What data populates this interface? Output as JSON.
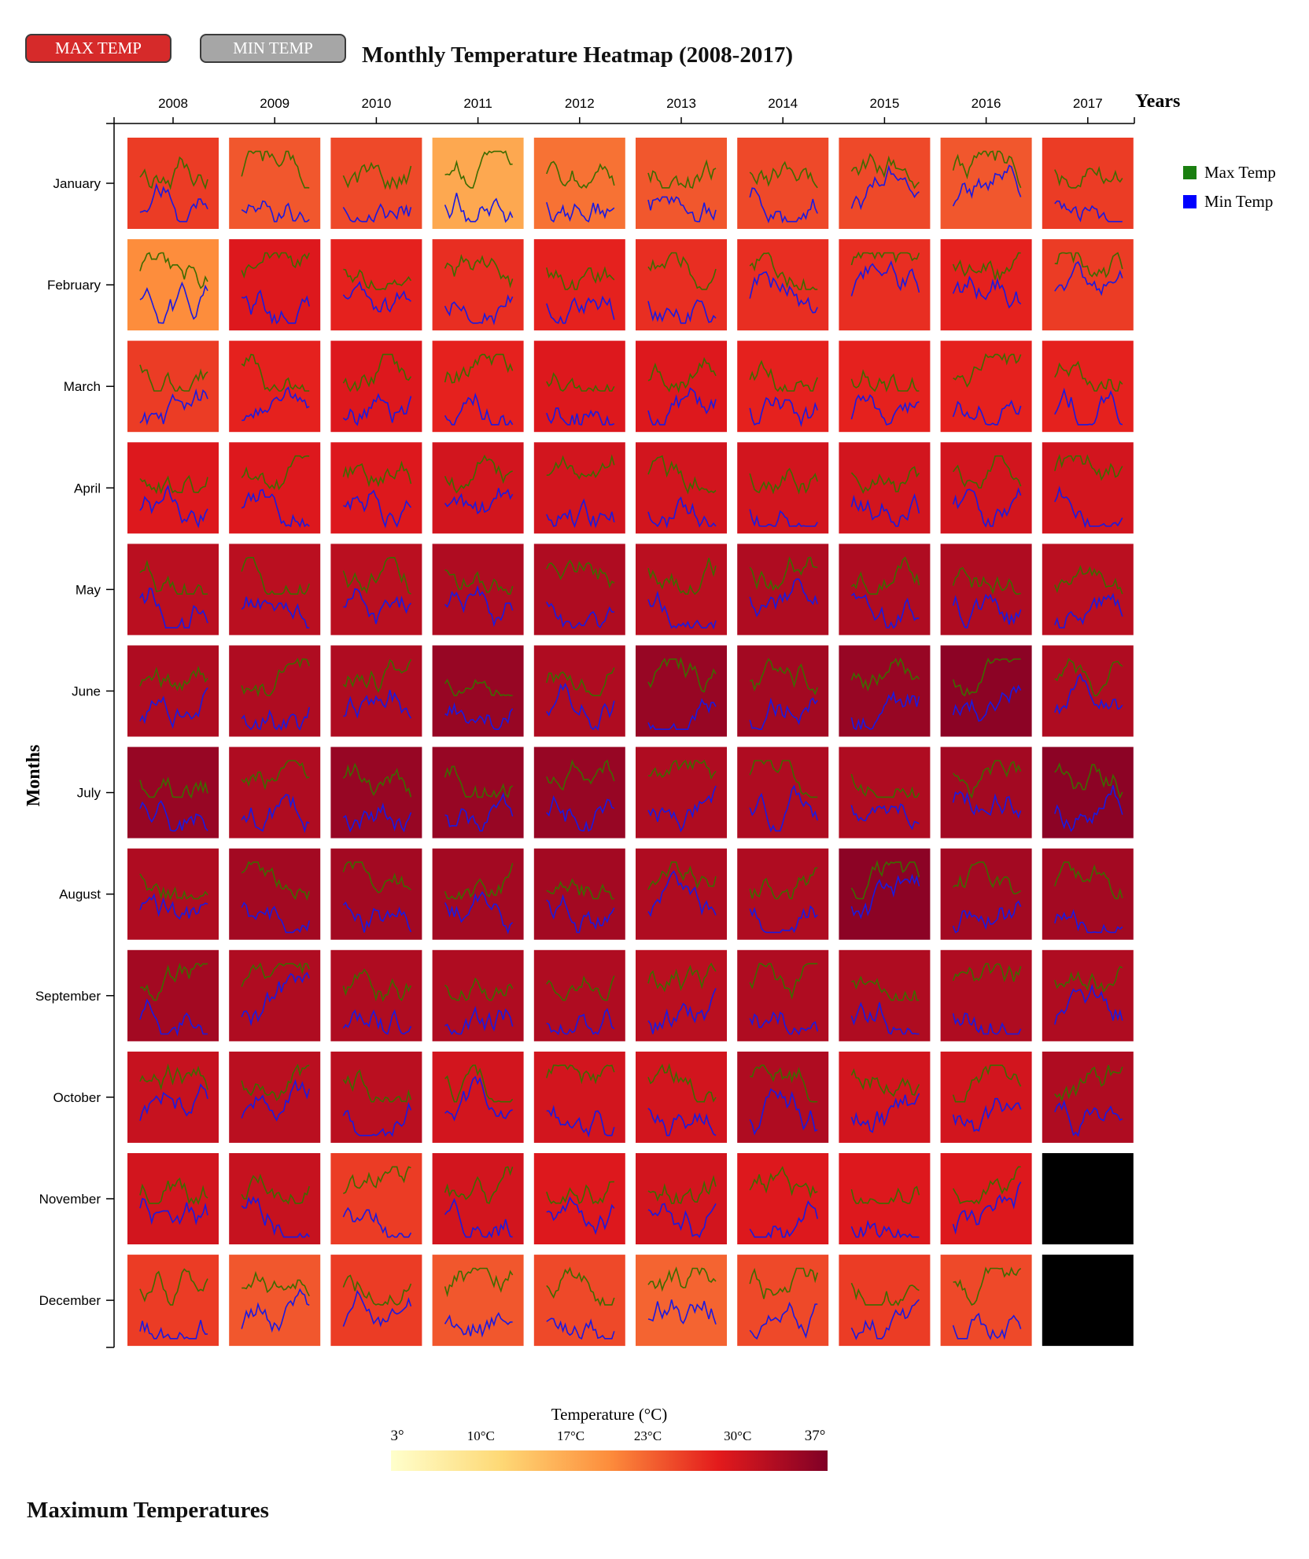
{
  "controls": {
    "max_button_label": "MAX TEMP",
    "min_button_label": "MIN TEMP",
    "max_button_color": "#d62a2a",
    "min_button_color": "#a6a6a6"
  },
  "footer_title": "Maximum Temperatures",
  "chart_data": {
    "type": "heatmap",
    "title": "Monthly Temperature Heatmap (2008-2017)",
    "xlabel": "Years",
    "ylabel": "Months",
    "x": [
      "2008",
      "2009",
      "2010",
      "2011",
      "2012",
      "2013",
      "2014",
      "2015",
      "2016",
      "2017"
    ],
    "y": [
      "January",
      "February",
      "March",
      "April",
      "May",
      "June",
      "July",
      "August",
      "September",
      "October",
      "November",
      "December"
    ],
    "values": [
      [
        26,
        24,
        25,
        17,
        22,
        24,
        25,
        25,
        24,
        26
      ],
      [
        20,
        29,
        28,
        27,
        28,
        27,
        27,
        27,
        28,
        26
      ],
      [
        26,
        28,
        29,
        28,
        29,
        29,
        28,
        28,
        28,
        28
      ],
      [
        29,
        29,
        29,
        30,
        30,
        30,
        30,
        30,
        30,
        30
      ],
      [
        32,
        32,
        32,
        33,
        33,
        32,
        33,
        33,
        33,
        32
      ],
      [
        33,
        33,
        33,
        35,
        33,
        35,
        34,
        35,
        36,
        33
      ],
      [
        35,
        33,
        35,
        35,
        35,
        33,
        33,
        33,
        34,
        36
      ],
      [
        33,
        34,
        34,
        34,
        34,
        33,
        33,
        36,
        34,
        34
      ],
      [
        34,
        33,
        33,
        33,
        33,
        32,
        33,
        33,
        33,
        33
      ],
      [
        31,
        32,
        32,
        30,
        30,
        30,
        33,
        30,
        30,
        33
      ],
      [
        30,
        31,
        26,
        30,
        29,
        30,
        29,
        29,
        29,
        null
      ],
      [
        26,
        24,
        26,
        24,
        25,
        23,
        25,
        26,
        25,
        null
      ]
    ],
    "missing_color": "#000000",
    "colorbar": {
      "title": "Temperature (°C)",
      "min": 3,
      "max": 37,
      "min_label": "3°",
      "max_label": "37°",
      "ticks": [
        {
          "value": 10,
          "label": "10°C"
        },
        {
          "value": 17,
          "label": "17°C"
        },
        {
          "value": 23,
          "label": "23°C"
        },
        {
          "value": 30,
          "label": "30°C"
        }
      ],
      "colors": [
        "#ffffcc",
        "#fed976",
        "#fd8d3c",
        "#e31a1c",
        "#800026"
      ]
    },
    "legend": {
      "position": "top-right",
      "entries": [
        {
          "label": "Max Temp",
          "color": "#1a7f10"
        },
        {
          "label": "Min Temp",
          "color": "#0000ff"
        }
      ]
    },
    "series_colors": {
      "max": "#3d6b00",
      "min": "#1a1ae0"
    }
  }
}
